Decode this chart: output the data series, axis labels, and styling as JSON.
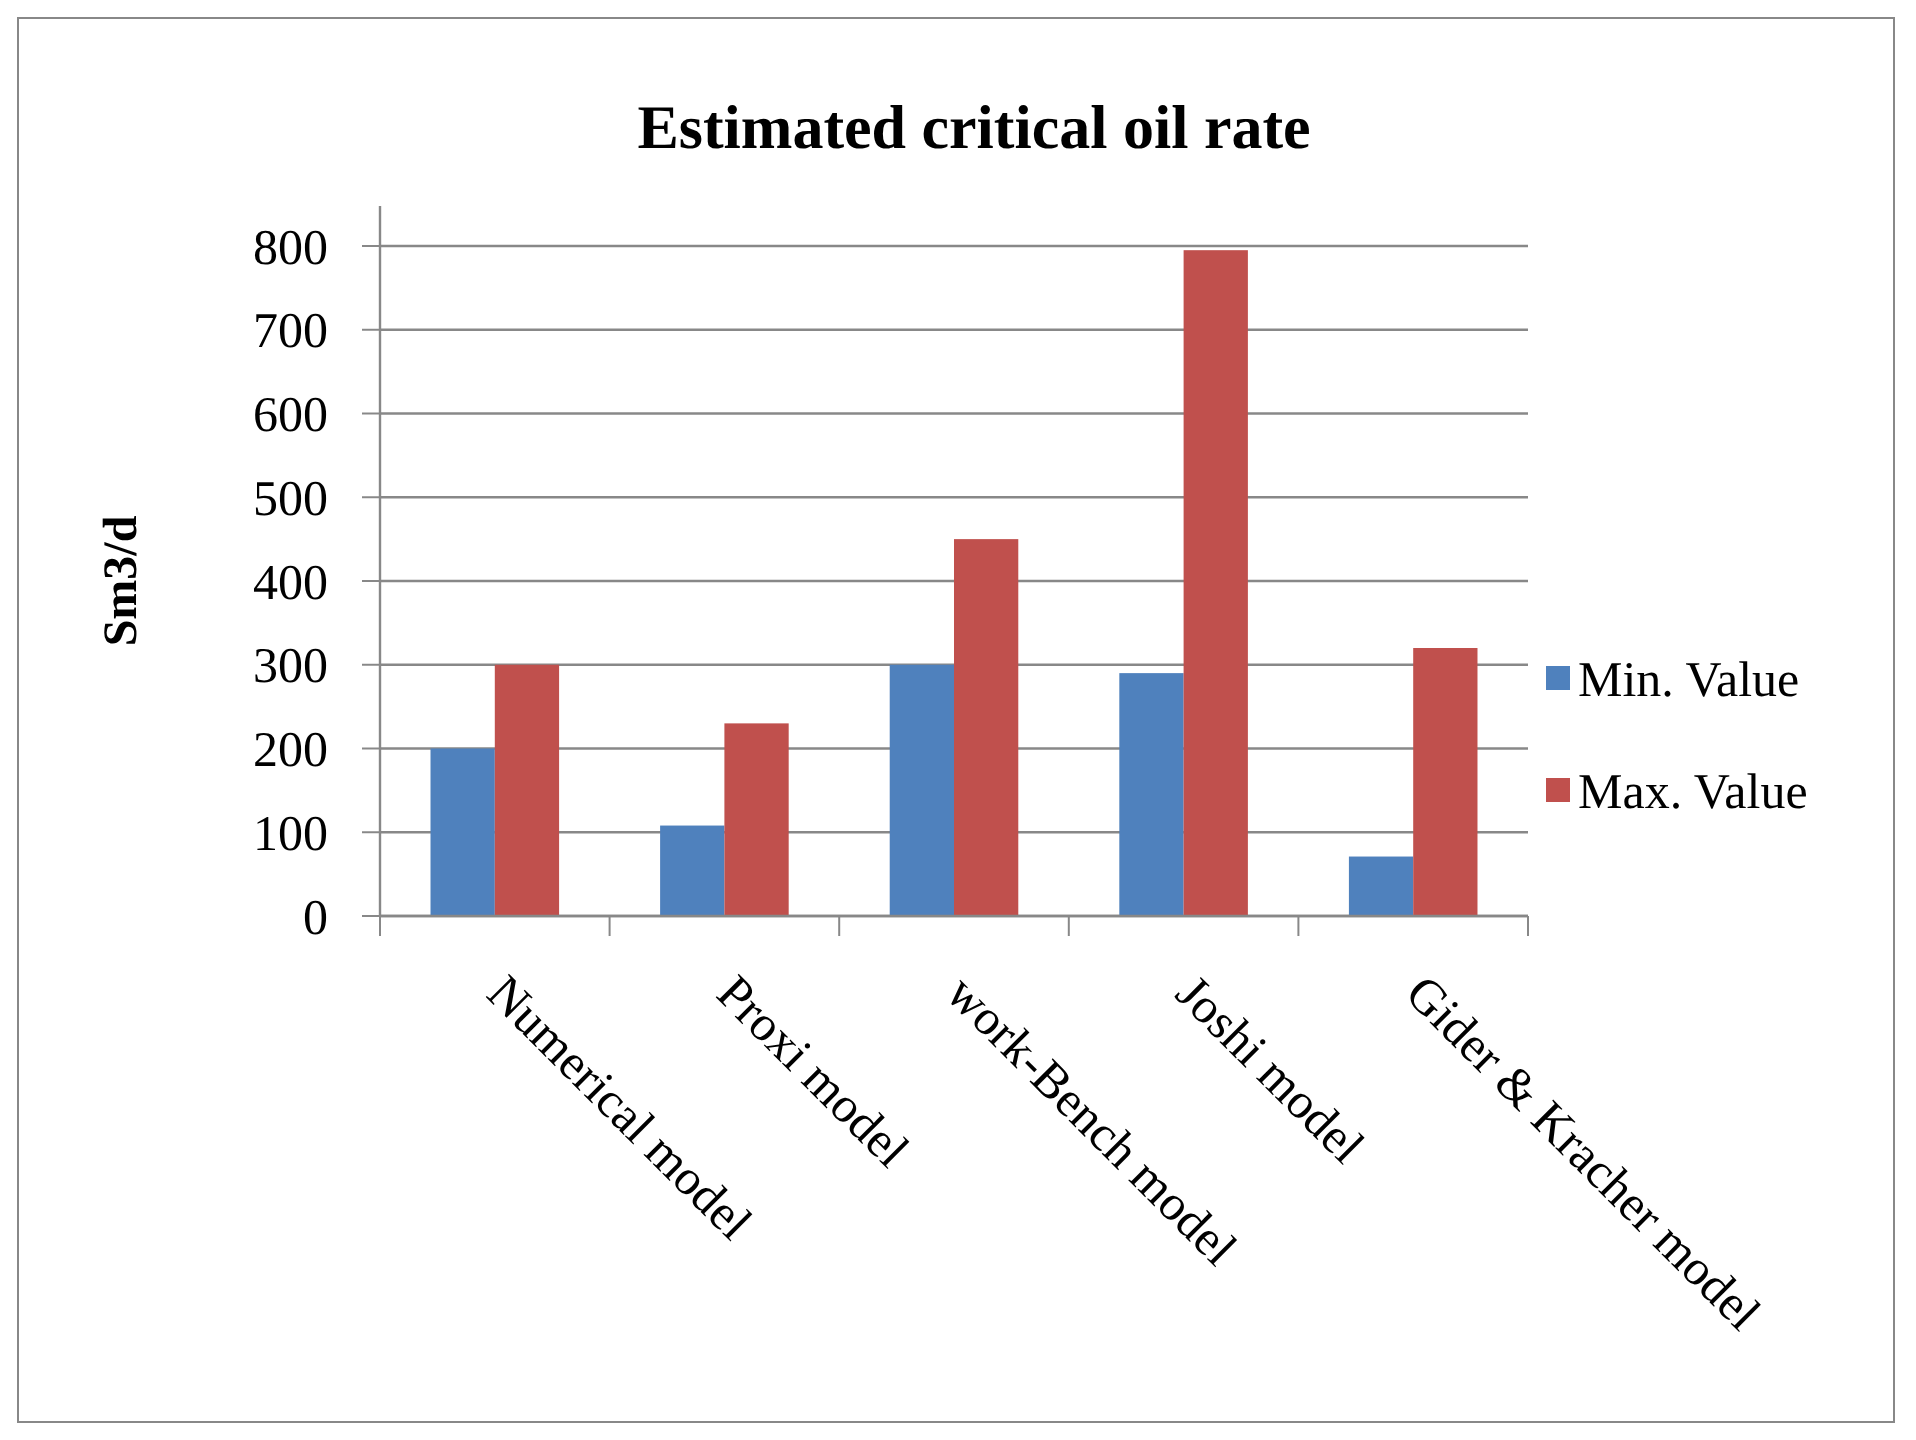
{
  "chart_data": {
    "type": "bar",
    "title": "Estimated critical oil rate",
    "ylabel": "Sm3/d",
    "categories": [
      "Numerical model",
      "Proxi model",
      "work-Bench model",
      "Joshi model",
      "Gider & Kracher model"
    ],
    "series": [
      {
        "name": "Min. Value",
        "color": "#4f81bd",
        "values": [
          200,
          108,
          300,
          290,
          71
        ]
      },
      {
        "name": "Max. Value",
        "color": "#c0504d",
        "values": [
          300,
          230,
          450,
          795,
          320
        ]
      }
    ],
    "ylim": [
      0,
      800
    ],
    "yticks": [
      0,
      100,
      200,
      300,
      400,
      500,
      600,
      700,
      800
    ],
    "grid": "y",
    "legend": "right"
  }
}
